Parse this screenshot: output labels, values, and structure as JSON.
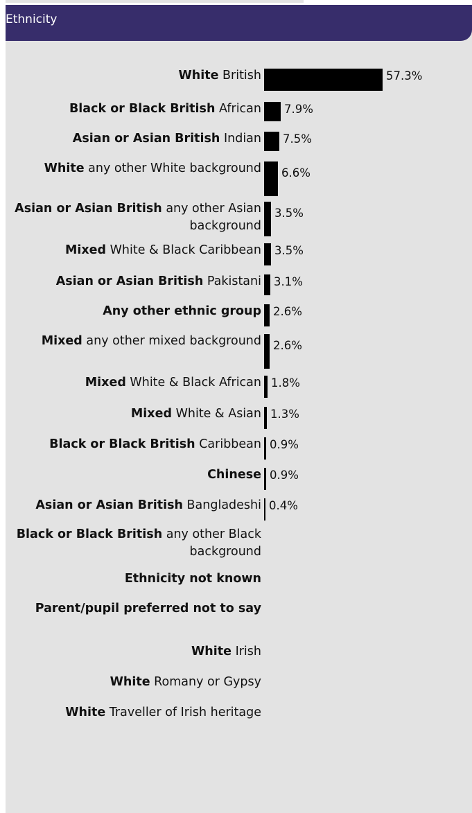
{
  "header": {
    "title": "Ethnicity"
  },
  "colors": {
    "header_bg": "#372d6b",
    "panel_bg": "#e3e3e3",
    "bar": "#000000"
  },
  "chart_data": {
    "type": "bar",
    "orientation": "horizontal",
    "title": "Ethnicity",
    "categories": [
      {
        "bold": "White",
        "rest": " British",
        "value": 57.3,
        "label": "57.3%"
      },
      {
        "bold": "Black or Black British",
        "rest": " African",
        "value": 7.9,
        "label": "7.9%"
      },
      {
        "bold": "Asian or Asian British",
        "rest": " Indian",
        "value": 7.5,
        "label": "7.5%"
      },
      {
        "bold": "White",
        "rest": " any other White background",
        "value": 6.6,
        "label": "6.6%"
      },
      {
        "bold": "Asian or Asian British",
        "rest": " any other Asian background",
        "value": 3.5,
        "label": "3.5%"
      },
      {
        "bold": "Mixed",
        "rest": " White & Black Caribbean",
        "value": 3.5,
        "label": "3.5%"
      },
      {
        "bold": "Asian or Asian British",
        "rest": " Pakistani",
        "value": 3.1,
        "label": "3.1%"
      },
      {
        "bold": "Any other ethnic group",
        "rest": "",
        "value": 2.6,
        "label": "2.6%"
      },
      {
        "bold": "Mixed",
        "rest": " any other mixed background",
        "value": 2.6,
        "label": "2.6%"
      },
      {
        "bold": "Mixed",
        "rest": " White & Black African",
        "value": 1.8,
        "label": "1.8%"
      },
      {
        "bold": "Mixed",
        "rest": " White & Asian",
        "value": 1.3,
        "label": "1.3%"
      },
      {
        "bold": "Black or Black British",
        "rest": " Caribbean",
        "value": 0.9,
        "label": "0.9%"
      },
      {
        "bold": "Chinese",
        "rest": "",
        "value": 0.9,
        "label": "0.9%"
      },
      {
        "bold": "Asian or Asian British",
        "rest": " Bangladeshi",
        "value": 0.4,
        "label": "0.4%"
      },
      {
        "bold": "Black or Black British",
        "rest": " any other Black background",
        "value": null,
        "label": ""
      },
      {
        "bold": "Ethnicity not known",
        "rest": "",
        "value": null,
        "label": ""
      },
      {
        "bold": "Parent/pupil preferred not to say",
        "rest": "",
        "value": null,
        "label": ""
      },
      {
        "bold": "White",
        "rest": " Irish",
        "value": null,
        "label": ""
      },
      {
        "bold": "White",
        "rest": " Romany or Gypsy",
        "value": null,
        "label": ""
      },
      {
        "bold": "White",
        "rest": " Traveller of Irish heritage",
        "value": null,
        "label": ""
      }
    ],
    "unit": "%",
    "xlim": [
      0,
      57.3
    ]
  }
}
